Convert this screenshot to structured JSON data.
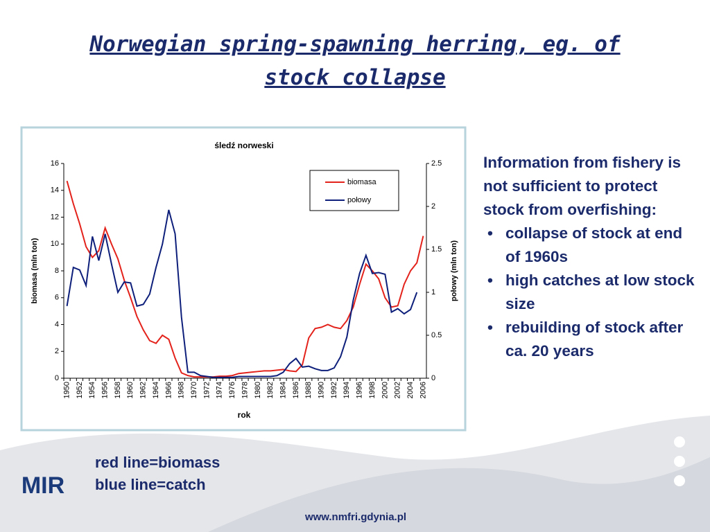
{
  "slide": {
    "title": "Norwegian spring-spawning herring, eg. of stock collapse",
    "intro": "Information from fishery is not sufficient to protect stock from overfishing:",
    "bullets": [
      "collapse of stock at end of 1960s",
      "high catches at low stock size",
      " rebuilding of stock after ca. 20 years"
    ],
    "caption": [
      "red line=biomass",
      "blue line=catch"
    ],
    "logo": "MIR",
    "url": "www.nmfri.gdynia.pl"
  },
  "chart_data": {
    "type": "line",
    "title": "śledź norweski",
    "x_label": "rok",
    "y_label": "biomasa (mln ton)",
    "y2_label": "połowy (mln ton)",
    "categories": [
      "1950",
      null,
      "1952",
      null,
      "1954",
      null,
      "1956",
      null,
      "1958",
      null,
      "1960",
      null,
      "1962",
      null,
      "1964",
      null,
      "1966",
      null,
      "1968",
      null,
      "1970",
      null,
      "1972",
      null,
      "1974",
      null,
      "1976",
      null,
      "1978",
      null,
      "1980",
      null,
      "1982",
      null,
      "1984",
      null,
      "1986",
      null,
      "1988",
      null,
      "1990",
      null,
      "1992",
      null,
      "1994",
      null,
      "1996",
      null,
      "1998",
      null,
      "2000",
      null,
      "2002",
      null,
      "2004",
      null,
      "2006"
    ],
    "series": [
      {
        "name": "biomasa",
        "color": "#e3221b",
        "values": [
          14.7,
          13.0,
          11.5,
          9.8,
          9.0,
          9.5,
          11.2,
          10.0,
          8.9,
          7.3,
          6.0,
          4.6,
          3.6,
          2.8,
          2.6,
          3.2,
          2.9,
          1.5,
          0.4,
          0.2,
          0.1,
          0.1,
          0.1,
          0.1,
          0.15,
          0.15,
          0.2,
          0.35,
          0.4,
          0.45,
          0.5,
          0.55,
          0.55,
          0.6,
          0.65,
          0.55,
          0.5,
          1.0,
          3.0,
          3.7,
          3.8,
          4.0,
          3.8,
          3.7,
          4.3,
          5.3,
          7.0,
          8.5,
          8.0,
          7.4,
          6.0,
          5.3,
          5.4,
          7.0,
          8.0,
          8.6,
          10.6
        ]
      },
      {
        "name": "połowy",
        "color": "#0d1f7a",
        "axis": "y2",
        "values": [
          0.84,
          1.29,
          1.26,
          1.08,
          1.65,
          1.37,
          1.68,
          1.33,
          1.0,
          1.12,
          1.11,
          0.84,
          0.86,
          0.98,
          1.29,
          1.56,
          1.96,
          1.68,
          0.71,
          0.07,
          0.07,
          0.03,
          0.02,
          0.01,
          0.01,
          0.01,
          0.01,
          0.02,
          0.02,
          0.02,
          0.02,
          0.02,
          0.02,
          0.03,
          0.07,
          0.17,
          0.23,
          0.13,
          0.14,
          0.11,
          0.09,
          0.09,
          0.12,
          0.25,
          0.48,
          0.91,
          1.22,
          1.43,
          1.22,
          1.23,
          1.21,
          0.77,
          0.81,
          0.75,
          0.8,
          1.0,
          null
        ]
      }
    ],
    "ylim": [
      0,
      16
    ],
    "yticks": [
      0,
      2,
      4,
      6,
      8,
      10,
      12,
      14,
      16
    ],
    "y2lim": [
      0,
      2.5
    ],
    "y2ticks": [
      0,
      0.5,
      1,
      1.5,
      2,
      2.5
    ],
    "legend": "upper right"
  }
}
